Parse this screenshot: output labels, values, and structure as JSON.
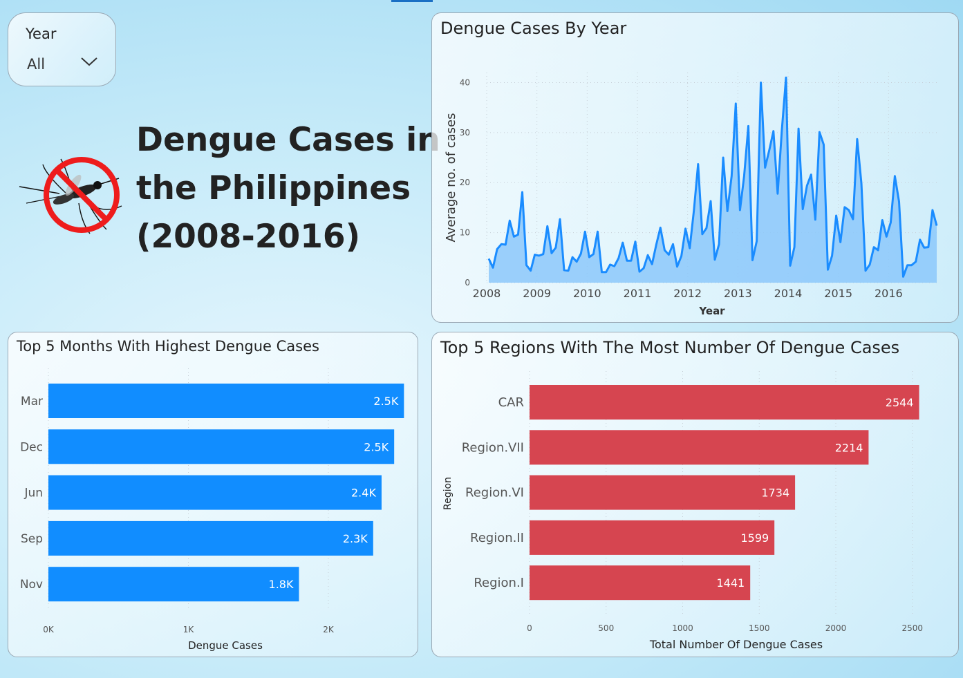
{
  "slicer": {
    "label": "Year",
    "value": "All"
  },
  "title_lines": [
    "Dengue Cases in",
    "the Philippines",
    "(2008-2016)"
  ],
  "icons": {
    "mosquito": "no-mosquito-icon",
    "dropdown": "chevron-down-icon"
  },
  "colors": {
    "line": "#1a8cff",
    "area": "#8cc8fa",
    "months_bar": "#118dff",
    "regions_bar": "#d64550"
  },
  "chart_data": [
    {
      "type": "area",
      "title": "Dengue Cases By Year",
      "xlabel": "Year",
      "ylabel": "Average no. of cases",
      "xlim": [
        2008,
        2017
      ],
      "ylim": [
        0,
        42
      ],
      "yticks": [
        0,
        10,
        20,
        30,
        40
      ],
      "xticks": [
        "2008",
        "2009",
        "2010",
        "2011",
        "2012",
        "2013",
        "2014",
        "2015",
        "2016"
      ],
      "grid": true,
      "series": [
        {
          "name": "",
          "start_year": 2008,
          "points_per_year": 12,
          "values": [
            4.8,
            3.0,
            6.7,
            7.7,
            7.6,
            12.4,
            9.2,
            9.6,
            18.1,
            3.5,
            2.4,
            5.6,
            5.4,
            5.7,
            11.3,
            5.9,
            7.0,
            12.7,
            2.5,
            2.4,
            5.1,
            4.2,
            5.8,
            10.2,
            5.1,
            5.7,
            10.2,
            2.1,
            2.1,
            3.6,
            3.3,
            4.9,
            8.0,
            4.4,
            4.4,
            8.2,
            2.2,
            2.9,
            5.5,
            3.7,
            7.6,
            11.0,
            6.5,
            5.6,
            7.7,
            3.2,
            5.3,
            10.8,
            6.9,
            14.5,
            23.7,
            9.7,
            10.9,
            16.3,
            4.6,
            7.7,
            25.0,
            14.3,
            21.3,
            35.8,
            14.5,
            21.3,
            31.3,
            4.5,
            8.3,
            40.0,
            23.0,
            26.5,
            30.3,
            17.8,
            30.4,
            41.0,
            3.4,
            7.1,
            30.8,
            14.7,
            19.4,
            21.6,
            12.6,
            30.1,
            27.6,
            2.6,
            5.4,
            13.4,
            8.1,
            15.1,
            14.5,
            12.7,
            28.7,
            19.9,
            2.4,
            3.6,
            7.1,
            6.5,
            12.5,
            9.2,
            12.0,
            21.3,
            16.2,
            1.2,
            3.5,
            3.5,
            4.2,
            8.6,
            7.0,
            7.1,
            14.5,
            11.4
          ]
        }
      ]
    },
    {
      "type": "bar",
      "orientation": "horizontal",
      "title": "Top 5 Months With Highest Dengue Cases",
      "xlabel": "Dengue Cases",
      "xlim": [
        0,
        2800
      ],
      "xticks": [
        0,
        1000,
        2000
      ],
      "xtick_labels": [
        "0K",
        "1K",
        "2K"
      ],
      "categories": [
        "Mar",
        "Dec",
        "Jun",
        "Sep",
        "Nov"
      ],
      "values": [
        2540,
        2470,
        2380,
        2320,
        1790
      ],
      "data_labels": [
        "2.5K",
        "2.5K",
        "2.4K",
        "2.3K",
        "1.8K"
      ]
    },
    {
      "type": "bar",
      "orientation": "horizontal",
      "title": "Top 5 Regions With The Most Number Of Dengue Cases",
      "xlabel": "Total Number Of Dengue Cases",
      "ylabel": "Region",
      "xlim": [
        0,
        2650
      ],
      "xticks": [
        0,
        500,
        1000,
        1500,
        2000,
        2500
      ],
      "xtick_labels": [
        "0",
        "500",
        "1000",
        "1500",
        "2000",
        "2500"
      ],
      "categories": [
        "CAR",
        "Region.VII",
        "Region.VI",
        "Region.II",
        "Region.I"
      ],
      "values": [
        2544,
        2214,
        1734,
        1599,
        1441
      ],
      "data_labels": [
        "2544",
        "2214",
        "1734",
        "1599",
        "1441"
      ]
    }
  ]
}
